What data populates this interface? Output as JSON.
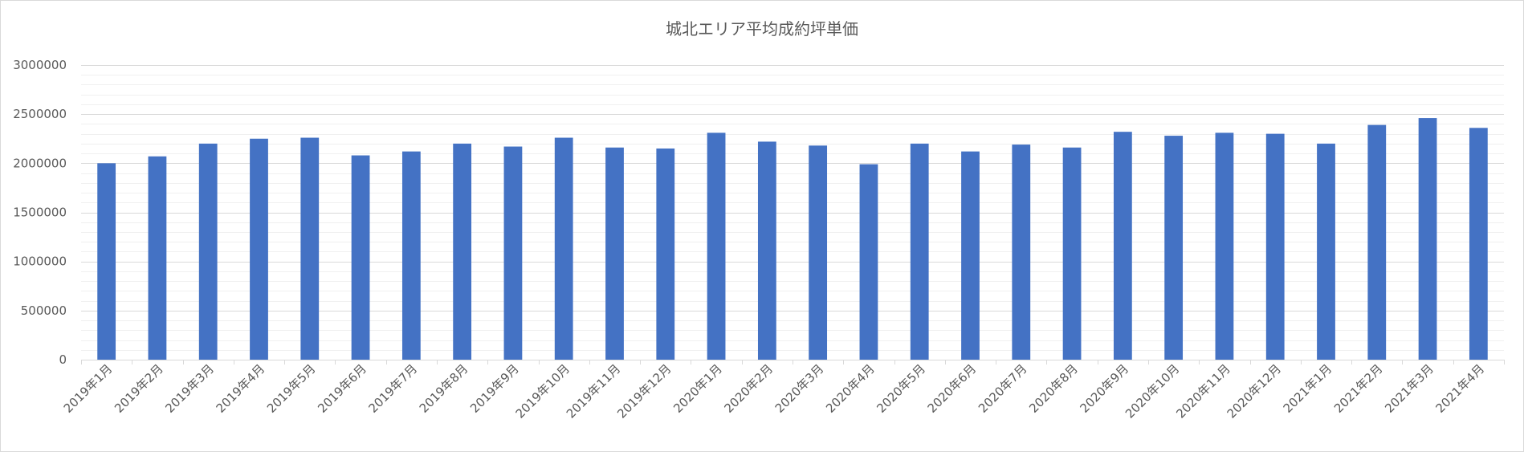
{
  "chart_data": {
    "type": "bar",
    "title": "城北エリア平均成約坪単価",
    "xlabel": "",
    "ylabel": "",
    "ylim": [
      0,
      3000000
    ],
    "yticks": [
      0,
      500000,
      1000000,
      1500000,
      2000000,
      2500000,
      3000000
    ],
    "ytick_labels": [
      "0",
      "500000",
      "1000000",
      "1500000",
      "2000000",
      "2500000",
      "3000000"
    ],
    "grid": true,
    "minor_grid": true,
    "legend": "none",
    "bar_color": "#4472c4",
    "categories": [
      "2019年1月",
      "2019年2月",
      "2019年3月",
      "2019年4月",
      "2019年5月",
      "2019年6月",
      "2019年7月",
      "2019年8月",
      "2019年9月",
      "2019年10月",
      "2019年11月",
      "2019年12月",
      "2020年1月",
      "2020年2月",
      "2020年3月",
      "2020年4月",
      "2020年5月",
      "2020年6月",
      "2020年7月",
      "2020年8月",
      "2020年9月",
      "2020年10月",
      "2020年11月",
      "2020年12月",
      "2021年1月",
      "2021年2月",
      "2021年3月",
      "2021年4月"
    ],
    "values": [
      2000000,
      2070000,
      2200000,
      2250000,
      2260000,
      2080000,
      2120000,
      2200000,
      2170000,
      2260000,
      2160000,
      2150000,
      2310000,
      2220000,
      2180000,
      1990000,
      2200000,
      2120000,
      2190000,
      2160000,
      2320000,
      2280000,
      2310000,
      2300000,
      2200000,
      2390000,
      2460000,
      2360000
    ]
  }
}
